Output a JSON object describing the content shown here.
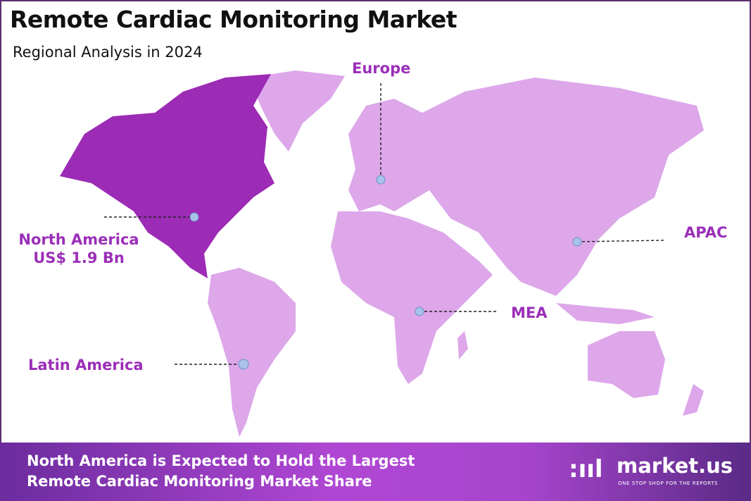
{
  "header": {
    "title": "Remote Cardiac Monitoring Market",
    "subtitle": "Regional Analysis in 2024"
  },
  "colors": {
    "highlight": "#9c2bb5",
    "region": "#dda7ea",
    "label": "#9b2fb8",
    "marker": "#a9c2ea"
  },
  "regions": [
    {
      "id": "north-america",
      "name": "North America",
      "value": "US$ 1.9 Bn",
      "highlighted": true
    },
    {
      "id": "europe",
      "name": "Europe"
    },
    {
      "id": "apac",
      "name": "APAC"
    },
    {
      "id": "mea",
      "name": "MEA"
    },
    {
      "id": "latin-america",
      "name": "Latin America"
    }
  ],
  "banner": {
    "line1": "North America is Expected to Hold the Largest",
    "line2": "Remote Cardiac Monitoring Market Share"
  },
  "logo": {
    "name": "market.us",
    "tagline": "ONE STOP SHOP FOR THE REPORTS"
  }
}
